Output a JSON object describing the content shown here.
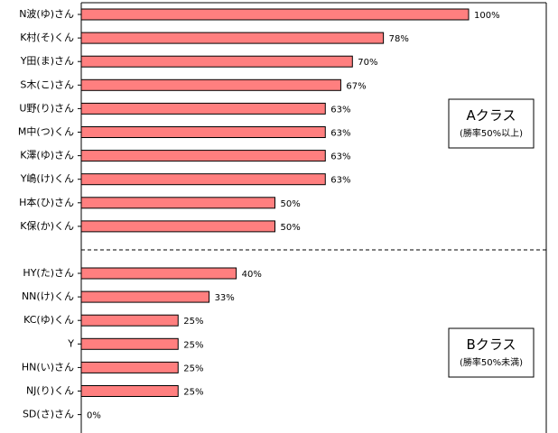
{
  "chart_data": {
    "type": "bar",
    "orientation": "horizontal",
    "bar_color": "#FF7F7F",
    "bar_stroke": "#000000",
    "xlim": [
      0,
      100
    ],
    "grid": false,
    "groups": [
      {
        "name": "Aクラス",
        "subtitle": "(勝率50%以上)",
        "categories": [
          "N波(ゆ)さん",
          "K村(そ)くん",
          "Y田(ま)さん",
          "S木(こ)さん",
          "U野(り)さん",
          "M中(つ)くん",
          "K澤(ゆ)さん",
          "Y嶋(け)くん",
          "H本(ひ)さん",
          "K保(か)くん"
        ],
        "values": [
          100,
          78,
          70,
          67,
          63,
          63,
          63,
          63,
          50,
          50
        ],
        "value_labels": [
          "100%",
          "78%",
          "70%",
          "67%",
          "63%",
          "63%",
          "63%",
          "63%",
          "50%",
          "50%"
        ]
      },
      {
        "name": "Bクラス",
        "subtitle": "(勝率50%未満)",
        "categories": [
          "HY(た)さん",
          "NN(け)くん",
          "KC(ゆ)くん",
          "Y",
          "HN(い)さん",
          "NJ(り)くん",
          "SD(さ)さん"
        ],
        "values": [
          40,
          33,
          25,
          25,
          25,
          25,
          0
        ],
        "value_labels": [
          "40%",
          "33%",
          "25%",
          "25%",
          "25%",
          "25%",
          "0%"
        ]
      }
    ]
  }
}
